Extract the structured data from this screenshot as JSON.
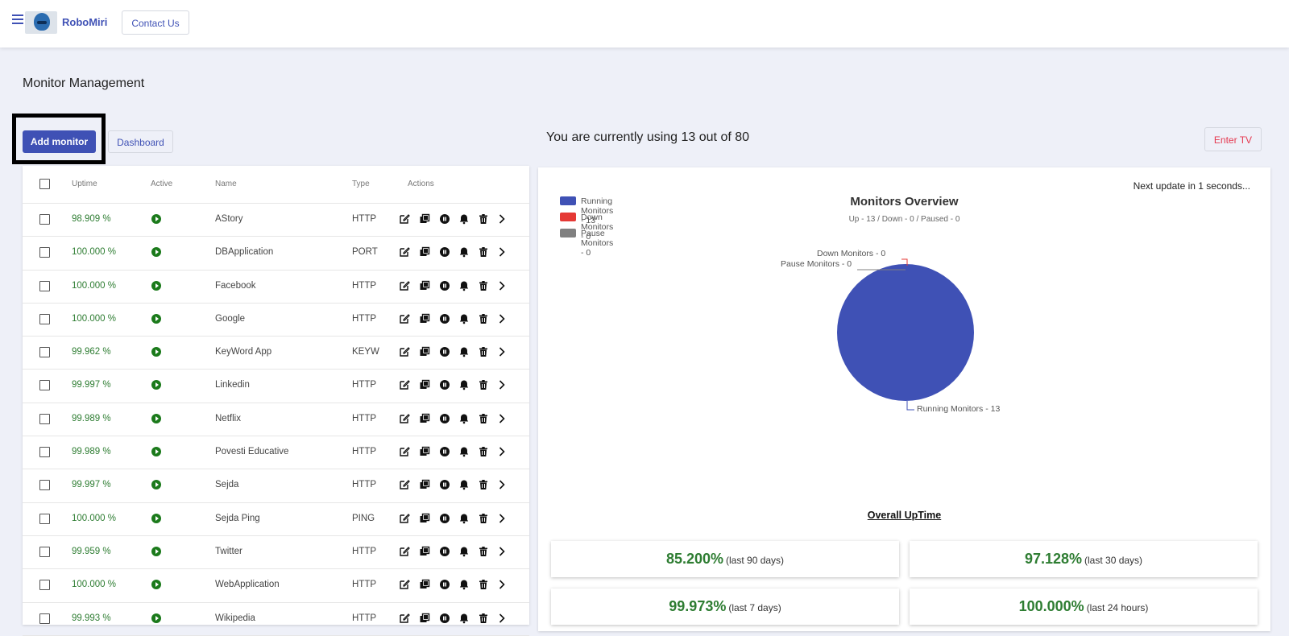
{
  "header": {
    "brand": "RoboMiri",
    "contact_label": "Contact Us"
  },
  "page": {
    "title": "Monitor Management",
    "add_label": "Add monitor",
    "dashboard_label": "Dashboard",
    "usage_text": "You are currently using 13 out of 80",
    "enter_tv_label": "Enter TV"
  },
  "table": {
    "headers": {
      "uptime": "Uptime",
      "active": "Active",
      "name": "Name",
      "type": "Type",
      "actions": "Actions"
    },
    "rows": [
      {
        "uptime": "98.909 %",
        "name": "AStory",
        "type": "HTTP"
      },
      {
        "uptime": "100.000 %",
        "name": "DBApplication",
        "type": "PORT"
      },
      {
        "uptime": "100.000 %",
        "name": "Facebook",
        "type": "HTTP"
      },
      {
        "uptime": "100.000 %",
        "name": "Google",
        "type": "HTTP"
      },
      {
        "uptime": "99.962 %",
        "name": "KeyWord App",
        "type": "KEYW"
      },
      {
        "uptime": "99.997 %",
        "name": "Linkedin",
        "type": "HTTP"
      },
      {
        "uptime": "99.989 %",
        "name": "Netflix",
        "type": "HTTP"
      },
      {
        "uptime": "99.989 %",
        "name": "Povesti Educative",
        "type": "HTTP"
      },
      {
        "uptime": "99.997 %",
        "name": "Sejda",
        "type": "HTTP"
      },
      {
        "uptime": "100.000 %",
        "name": "Sejda Ping",
        "type": "PING"
      },
      {
        "uptime": "99.959 %",
        "name": "Twitter",
        "type": "HTTP"
      },
      {
        "uptime": "100.000 %",
        "name": "WebApplication",
        "type": "HTTP"
      },
      {
        "uptime": "99.993 %",
        "name": "Wikipedia",
        "type": "HTTP"
      }
    ],
    "action_icons": [
      "edit-icon",
      "copy-icon",
      "pause-icon",
      "bell-icon",
      "trash-icon",
      "chevron-right-icon"
    ]
  },
  "overview": {
    "next_update": "Next update in 1 seconds...",
    "title": "Monitors Overview",
    "subtitle": "Up - 13 / Down - 0 / Paused - 0",
    "legend": [
      {
        "label": "Running Monitors - 13",
        "color": "#3f51b5"
      },
      {
        "label": "Down Monitors - 0",
        "color": "#e53935"
      },
      {
        "label": "Pause Monitors - 0",
        "color": "#808080"
      }
    ],
    "pie_labels": {
      "down": "Down Monitors - 0",
      "pause": "Pause Monitors - 0",
      "running": "Running Monitors - 13"
    }
  },
  "chart_data": {
    "type": "pie",
    "title": "Monitors Overview",
    "subtitle": "Up - 13 / Down - 0 / Paused - 0",
    "legend_position": "top-left",
    "slices": [
      {
        "label": "Running Monitors",
        "value": 13,
        "color": "#3f51b5"
      },
      {
        "label": "Down Monitors",
        "value": 0,
        "color": "#e53935"
      },
      {
        "label": "Pause Monitors",
        "value": 0,
        "color": "#808080"
      }
    ]
  },
  "uptime": {
    "title": "Overall UpTime",
    "stats": [
      {
        "value": "85.200%",
        "period": "(last 90 days)"
      },
      {
        "value": "97.128%",
        "period": "(last 30 days)"
      },
      {
        "value": "99.973%",
        "period": "(last 7 days)"
      },
      {
        "value": "100.000%",
        "period": "(last 24 hours)"
      }
    ]
  },
  "colors": {
    "accent": "#3f51b5",
    "success": "#2e7d32",
    "danger": "#e53950"
  }
}
